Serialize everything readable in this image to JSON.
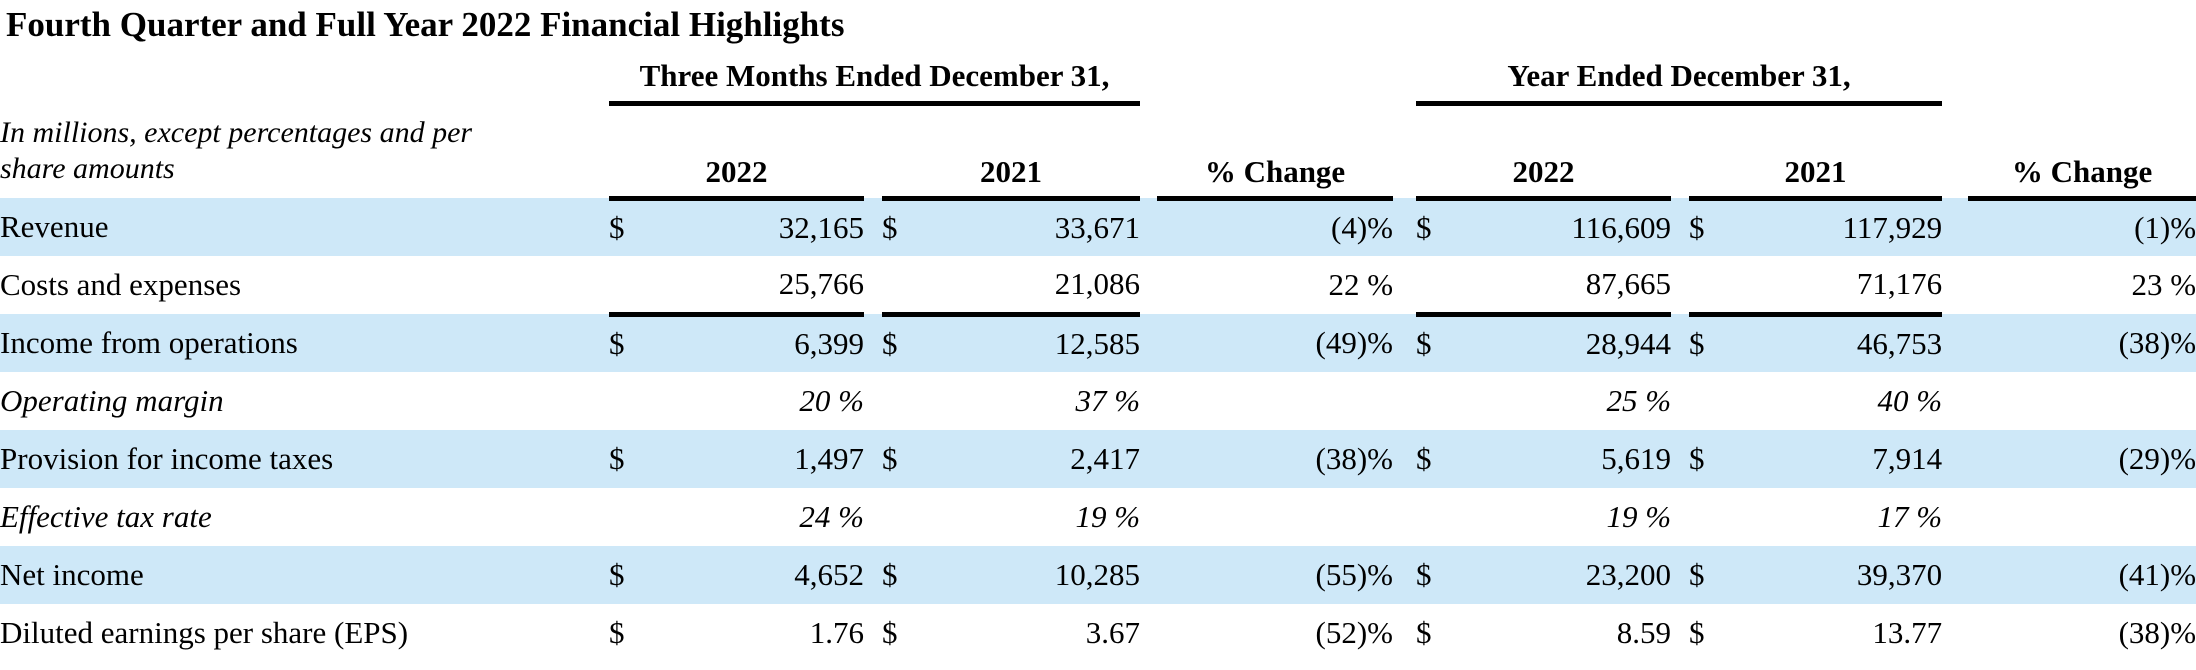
{
  "title": "Fourth Quarter and Full Year 2022 Financial Highlights",
  "colors": {
    "highlight_row": "#cee8f8",
    "rule": "#000000",
    "text": "#000000"
  },
  "table": {
    "note": "In millions, except percentages and per share amounts",
    "spanners": [
      "Three Months Ended December 31,",
      "Year Ended December 31,"
    ],
    "columns": [
      "2022",
      "2021",
      "% Change",
      "2022",
      "2021",
      "% Change"
    ],
    "rows": [
      {
        "label": "Revenue",
        "highlight": true,
        "italic": false,
        "rule": false,
        "cells": [
          {
            "d": "$",
            "v": "32,165"
          },
          {
            "d": "$",
            "v": "33,671"
          },
          {
            "v": "(4)%"
          },
          {
            "d": "$",
            "v": "116,609"
          },
          {
            "d": "$",
            "v": "117,929"
          },
          {
            "v": "(1)%"
          }
        ]
      },
      {
        "label": "Costs and expenses",
        "highlight": false,
        "italic": false,
        "rule": true,
        "cells": [
          {
            "d": "",
            "v": "25,766"
          },
          {
            "d": "",
            "v": "21,086"
          },
          {
            "v": "22 %"
          },
          {
            "d": "",
            "v": "87,665"
          },
          {
            "d": "",
            "v": "71,176"
          },
          {
            "v": "23 %"
          }
        ]
      },
      {
        "label": "Income from operations",
        "highlight": true,
        "italic": false,
        "rule": false,
        "cells": [
          {
            "d": "$",
            "v": "6,399"
          },
          {
            "d": "$",
            "v": "12,585"
          },
          {
            "v": "(49)%"
          },
          {
            "d": "$",
            "v": "28,944"
          },
          {
            "d": "$",
            "v": "46,753"
          },
          {
            "v": "(38)%"
          }
        ]
      },
      {
        "label": "Operating margin",
        "highlight": false,
        "italic": true,
        "rule": false,
        "cells": [
          {
            "d": "",
            "v": "20 %"
          },
          {
            "d": "",
            "v": "37 %"
          },
          {
            "v": ""
          },
          {
            "d": "",
            "v": "25 %"
          },
          {
            "d": "",
            "v": "40 %"
          },
          {
            "v": ""
          }
        ]
      },
      {
        "label": "Provision for income taxes",
        "highlight": true,
        "italic": false,
        "rule": false,
        "cells": [
          {
            "d": "$",
            "v": "1,497"
          },
          {
            "d": "$",
            "v": "2,417"
          },
          {
            "v": "(38)%"
          },
          {
            "d": "$",
            "v": "5,619"
          },
          {
            "d": "$",
            "v": "7,914"
          },
          {
            "v": "(29)%"
          }
        ]
      },
      {
        "label": "Effective tax rate",
        "highlight": false,
        "italic": true,
        "rule": false,
        "cells": [
          {
            "d": "",
            "v": "24 %"
          },
          {
            "d": "",
            "v": "19 %"
          },
          {
            "v": ""
          },
          {
            "d": "",
            "v": "19 %"
          },
          {
            "d": "",
            "v": "17 %"
          },
          {
            "v": ""
          }
        ]
      },
      {
        "label": "Net income",
        "highlight": true,
        "italic": false,
        "rule": false,
        "cells": [
          {
            "d": "$",
            "v": "4,652"
          },
          {
            "d": "$",
            "v": "10,285"
          },
          {
            "v": "(55)%"
          },
          {
            "d": "$",
            "v": "23,200"
          },
          {
            "d": "$",
            "v": "39,370"
          },
          {
            "v": "(41)%"
          }
        ]
      },
      {
        "label": "Diluted earnings per share (EPS)",
        "highlight": false,
        "italic": false,
        "rule": false,
        "cells": [
          {
            "d": "$",
            "v": "1.76"
          },
          {
            "d": "$",
            "v": "3.67"
          },
          {
            "v": "(52)%"
          },
          {
            "d": "$",
            "v": "8.59"
          },
          {
            "d": "$",
            "v": "13.77"
          },
          {
            "v": "(38)%"
          }
        ]
      }
    ]
  }
}
